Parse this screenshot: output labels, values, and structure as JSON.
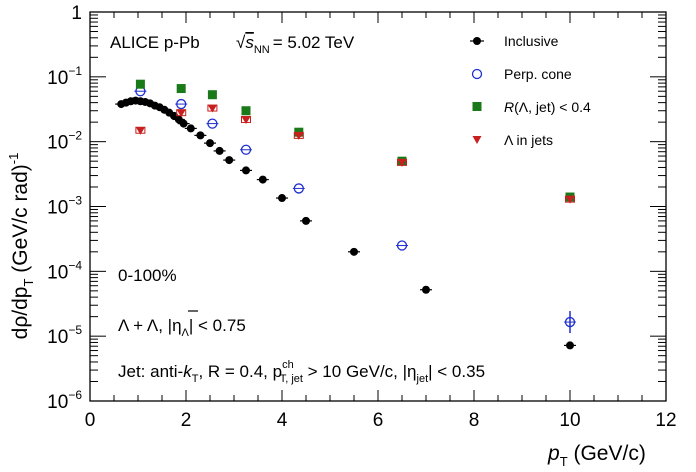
{
  "chart_data": {
    "type": "scatter",
    "xscale": "linear",
    "yscale": "log",
    "xlim": [
      0,
      12
    ],
    "ylim": [
      1e-06,
      1
    ],
    "experiment_label": "ALICE p-Pb",
    "energy_label": "= 5.02 TeV",
    "energy_sqrt_symbol": "√",
    "energy_var": "s",
    "energy_sub": "NN",
    "centrality_label": "0-100%",
    "particle_label": "Λ + Λ, |η",
    "particle_label_sub": "Λ",
    "particle_label_end": "| < 0.75",
    "jet_label": {
      "prefix": "Jet: anti-",
      "k": "k",
      "k_sub": "T",
      "r_part": ", R = 0.4, p",
      "p_sup": "ch",
      "p_sub": "T, jet",
      "pt_cut": " > 10 GeV/c, |η",
      "eta_sub": "jet",
      "eta_cut": "| < 0.35"
    },
    "xlabel": {
      "main": "p",
      "sub": "T",
      "unit": " (GeV/c)"
    },
    "ylabel": {
      "d1": "dρ/dp",
      "sub": "T",
      "unit": " (GeV/c rad)",
      "sup": "-1"
    },
    "x_ticks": [
      "0",
      "2",
      "4",
      "6",
      "8",
      "10",
      "12"
    ],
    "y_ticks": [
      {
        "text": "1",
        "exp": ""
      },
      {
        "text": "10",
        "exp": "−1"
      },
      {
        "text": "10",
        "exp": "−2"
      },
      {
        "text": "10",
        "exp": "−3"
      },
      {
        "text": "10",
        "exp": "−4"
      },
      {
        "text": "10",
        "exp": "−5"
      },
      {
        "text": "10",
        "exp": "−6"
      }
    ],
    "series": [
      {
        "name": "Inclusive",
        "marker": "filled-circle",
        "color": "#000000",
        "x": [
          0.65,
          0.75,
          0.85,
          0.95,
          1.05,
          1.15,
          1.25,
          1.35,
          1.45,
          1.55,
          1.65,
          1.75,
          1.85,
          1.95,
          2.1,
          2.3,
          2.5,
          2.7,
          2.9,
          3.25,
          3.6,
          4.0,
          4.5,
          5.5,
          7.0,
          10.0
        ],
        "y": [
          0.038,
          0.04,
          0.042,
          0.043,
          0.042,
          0.041,
          0.039,
          0.036,
          0.034,
          0.031,
          0.028,
          0.025,
          0.022,
          0.019,
          0.016,
          0.0125,
          0.0095,
          0.0072,
          0.0052,
          0.0036,
          0.0026,
          0.00135,
          0.0006,
          0.0002,
          5.2e-05,
          7.2e-06
        ]
      },
      {
        "name": "Perp. cone",
        "marker": "open-circle",
        "color": "#1f2fd0",
        "x": [
          1.05,
          1.9,
          2.55,
          3.25,
          4.35,
          6.5,
          10.0
        ],
        "y": [
          0.06,
          0.038,
          0.019,
          0.0075,
          0.0019,
          0.00025,
          1.65e-05
        ]
      },
      {
        "name": "R(Λ, jet) < 0.4",
        "name_r": "R",
        "name_rest": "(Λ, jet) < 0.4",
        "marker": "filled-square",
        "color": "#1a7a1a",
        "x": [
          1.05,
          1.9,
          2.55,
          3.25,
          4.35,
          6.5,
          10.0
        ],
        "y": [
          0.077,
          0.066,
          0.053,
          0.03,
          0.014,
          0.005,
          0.0014
        ]
      },
      {
        "name": "Λ in jets",
        "marker": "filled-triangle-down",
        "color": "#c8201e",
        "x": [
          1.05,
          1.9,
          2.55,
          3.25,
          4.35,
          6.5,
          10.0
        ],
        "y": [
          0.015,
          0.028,
          0.033,
          0.022,
          0.0125,
          0.0048,
          0.0013
        ]
      }
    ]
  }
}
